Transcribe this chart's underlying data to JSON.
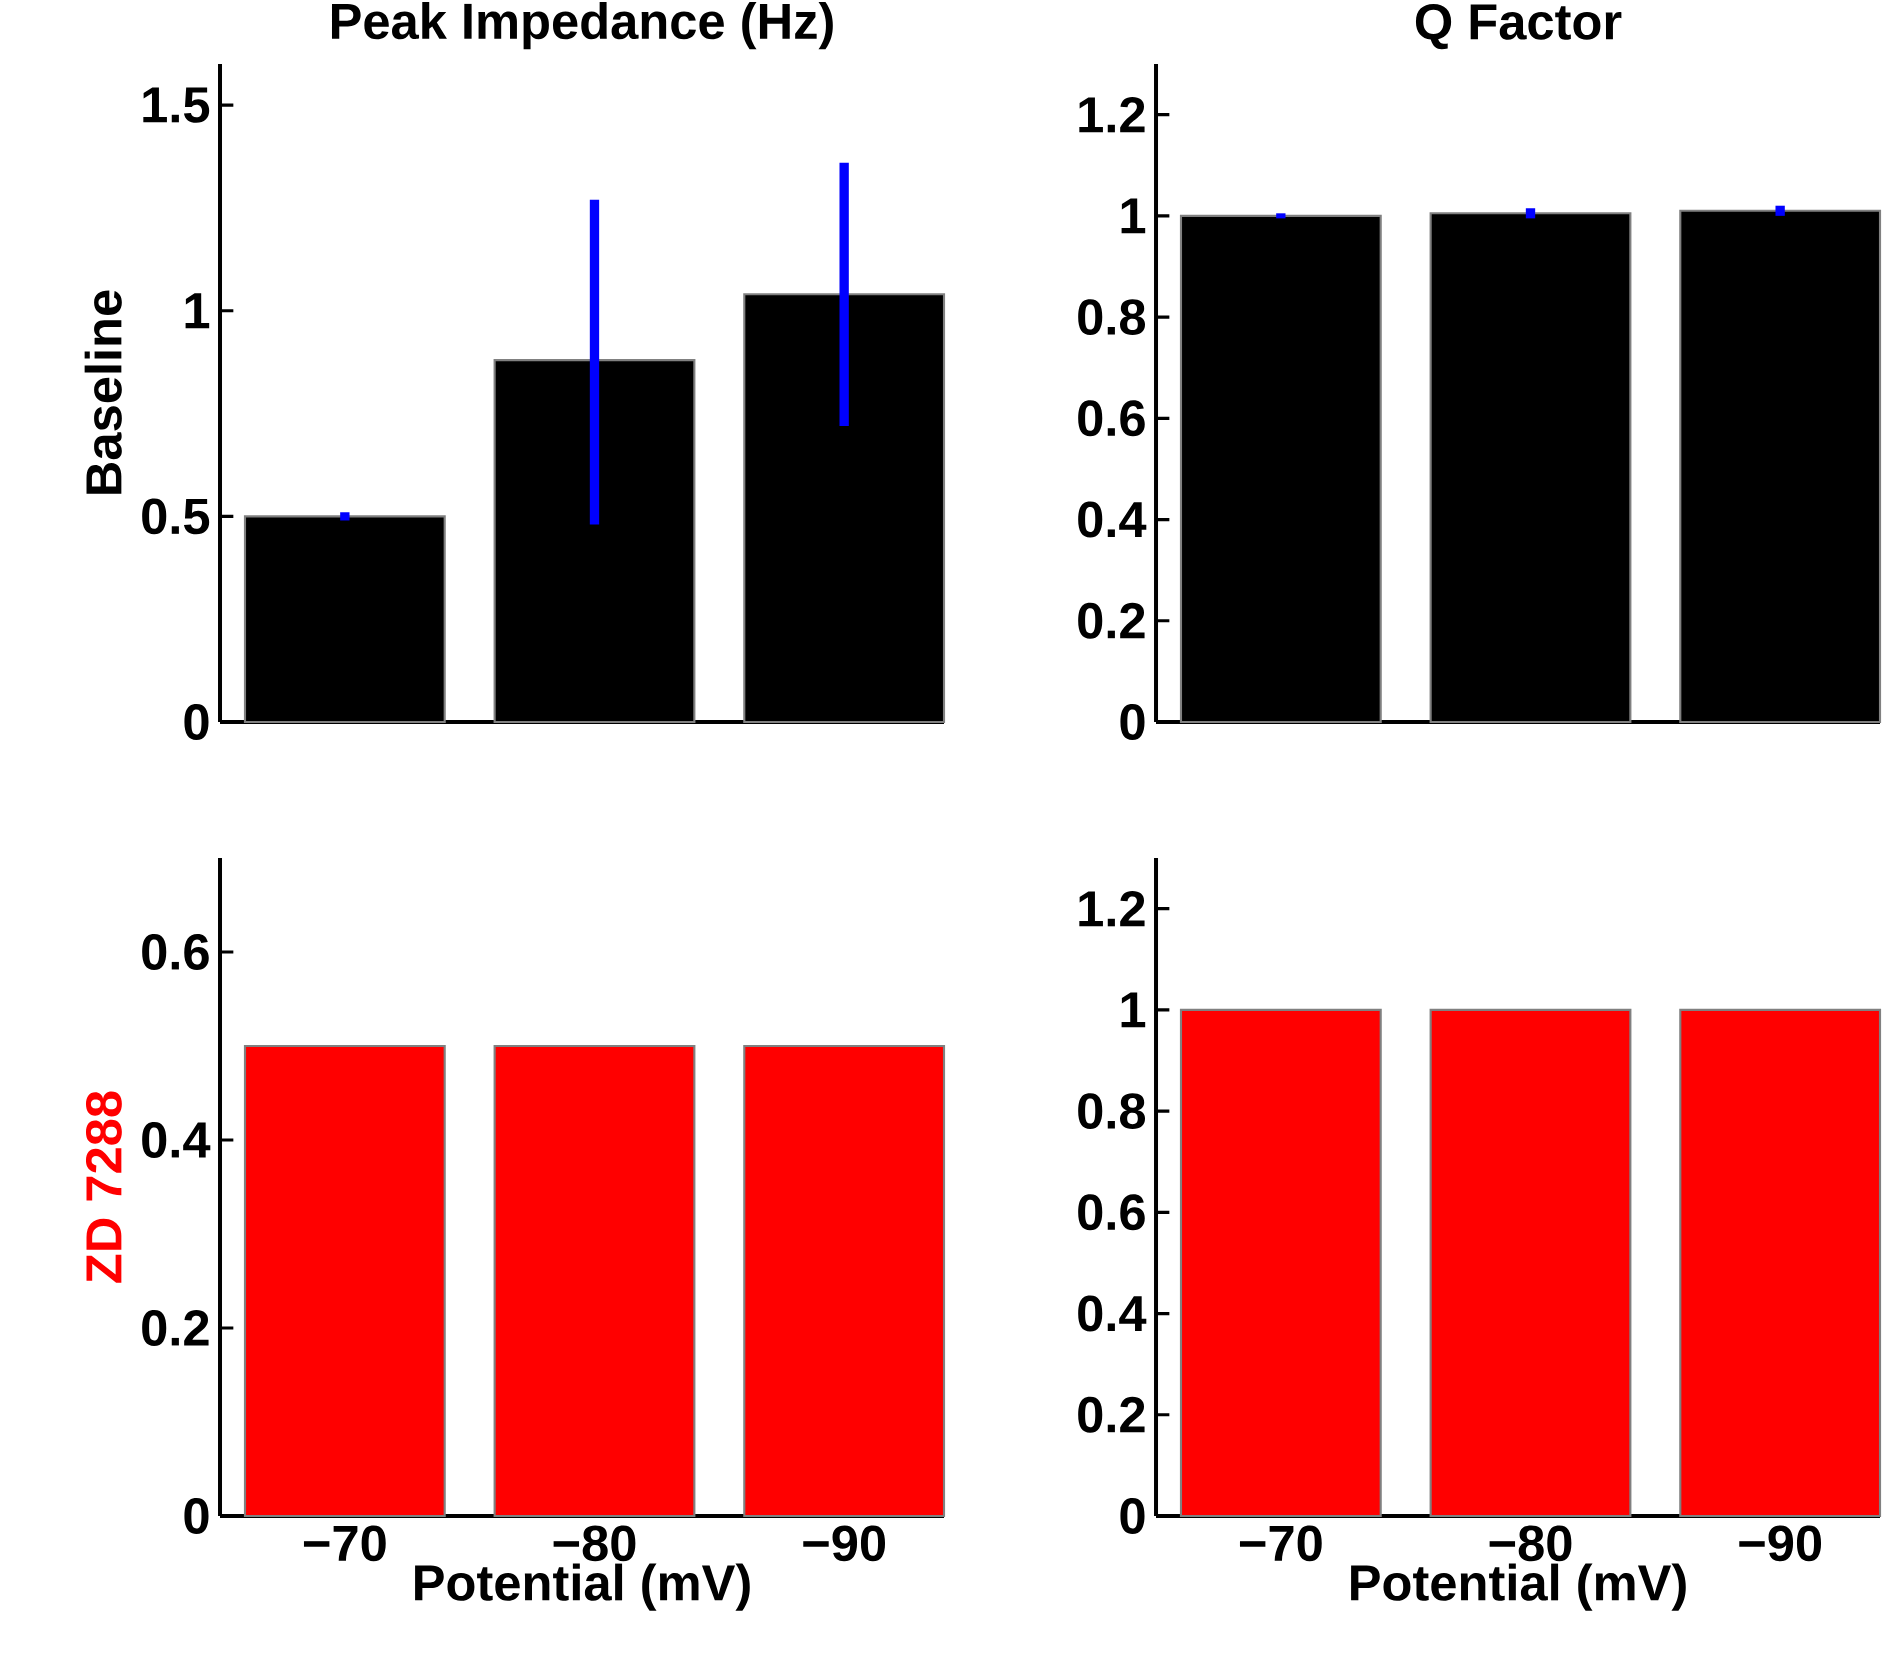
{
  "chart_data": [
    {
      "type": "bar",
      "title": "Peak Impedance (Hz)",
      "ylabel": "Baseline",
      "categories": [
        "−70",
        "−80",
        "−90"
      ],
      "values": [
        0.5,
        0.88,
        1.04
      ],
      "color": "#000000",
      "errors": [
        [
          0.49,
          0.51
        ],
        [
          0.48,
          1.27
        ],
        [
          0.72,
          1.36
        ]
      ],
      "ylim": [
        0,
        1.6
      ],
      "yticks": [
        0,
        0.5,
        1,
        1.5
      ],
      "tick_labels": "y"
    },
    {
      "type": "bar",
      "title": "Q Factor",
      "categories": [
        "−70",
        "−80",
        "−90"
      ],
      "values": [
        1.0,
        1.005,
        1.01
      ],
      "color": "#000000",
      "errors": [
        [
          0.995,
          1.005
        ],
        [
          0.995,
          1.015
        ],
        [
          1.0,
          1.02
        ]
      ],
      "ylim": [
        0,
        1.3
      ],
      "yticks": [
        0,
        0.2,
        0.4,
        0.6,
        0.8,
        1,
        1.2
      ],
      "tick_labels": "y"
    },
    {
      "type": "bar",
      "ylabel": "ZD 7288",
      "xlabel": "Potential (mV)",
      "categories": [
        "−70",
        "−80",
        "−90"
      ],
      "values": [
        0.5,
        0.5,
        0.5
      ],
      "color": "#ff0000",
      "ylim": [
        0,
        0.7
      ],
      "yticks": [
        0,
        0.2,
        0.4,
        0.6
      ]
    },
    {
      "type": "bar",
      "xlabel": "Potential (mV)",
      "categories": [
        "−70",
        "−80",
        "−90"
      ],
      "values": [
        1.0,
        1.0,
        1.0
      ],
      "color": "#ff0000",
      "ylim": [
        0,
        1.3
      ],
      "yticks": [
        0,
        0.2,
        0.4,
        0.6,
        0.8,
        1,
        1.2
      ]
    }
  ]
}
